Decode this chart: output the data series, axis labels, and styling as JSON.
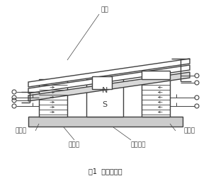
{
  "title": "图1  原理示意图",
  "label_衔铁": "衔铁",
  "label_左边柱": "左边柱",
  "label_右边柱": "右边柱",
  "label_磁轭板": "磁轭板",
  "label_永久磁铁": "永久磁铁",
  "label_N": "N",
  "label_S": "S",
  "line_color": "#404040",
  "bg_color": "#ffffff",
  "font_size": 6.5,
  "title_font_size": 7.0
}
